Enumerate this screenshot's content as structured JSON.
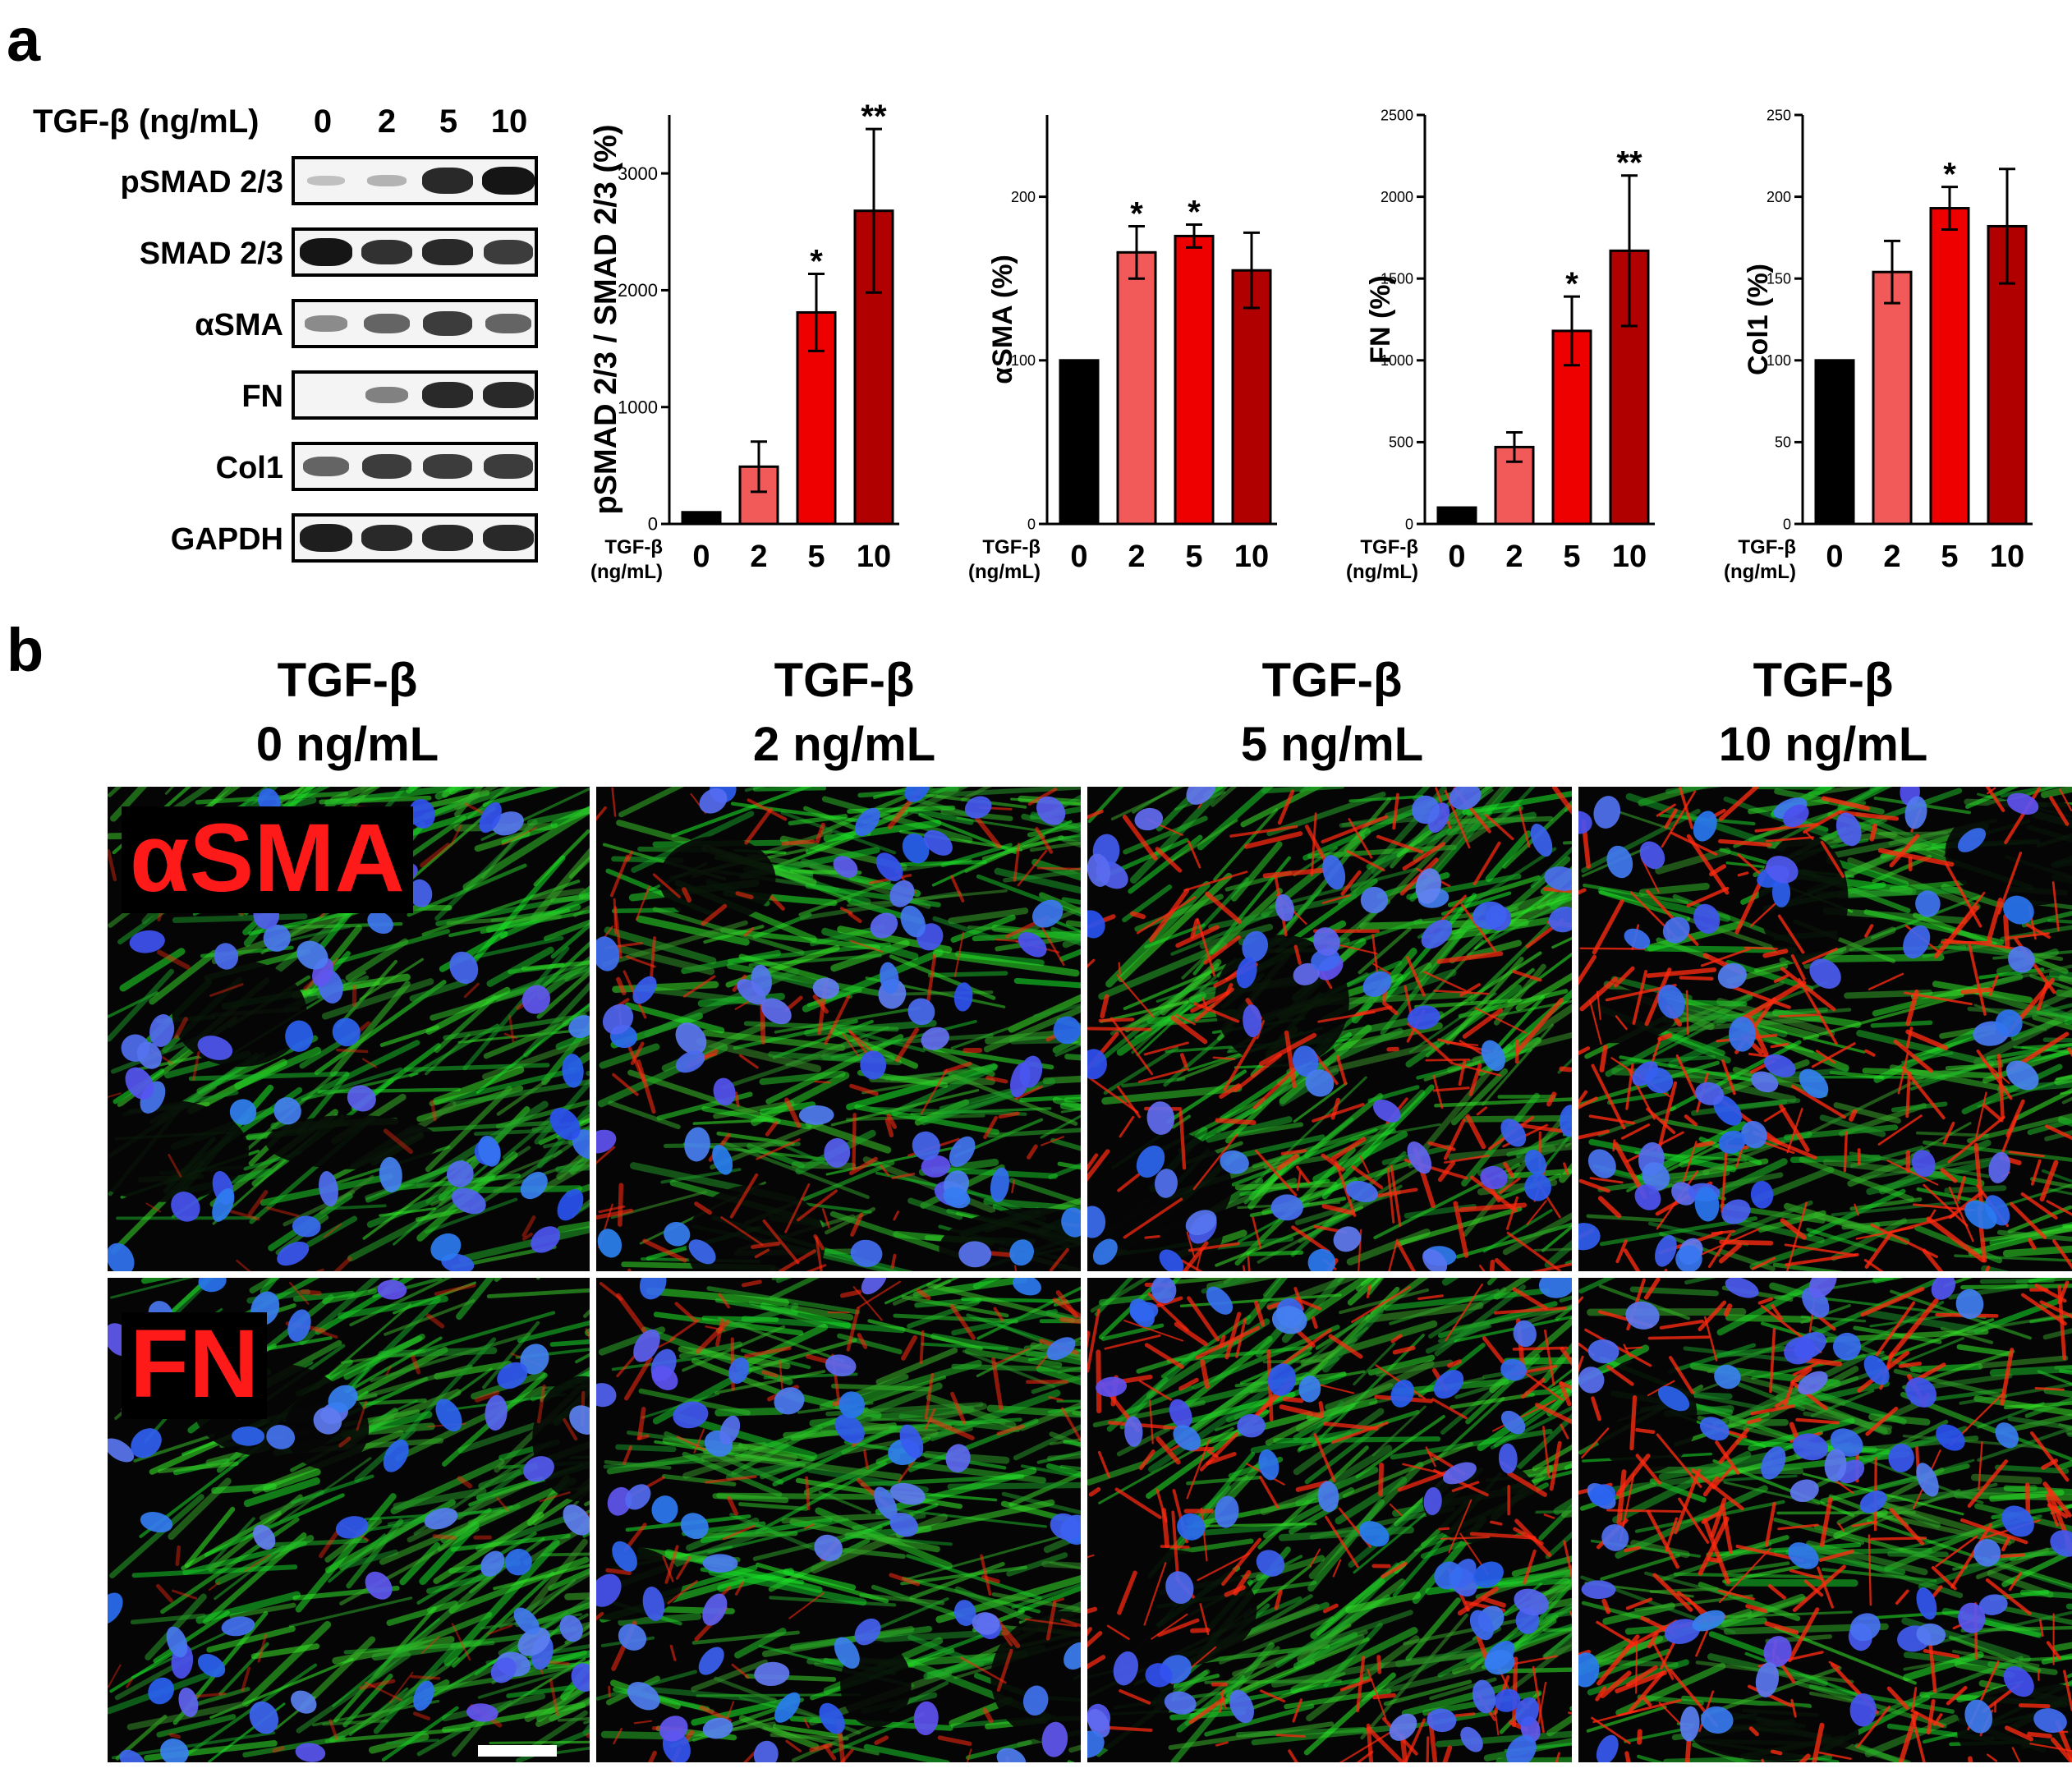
{
  "panel_labels": {
    "a": "a",
    "b": "b"
  },
  "western_blot": {
    "header": "TGF-β (ng/mL)",
    "lanes": [
      "0",
      "2",
      "5",
      "10"
    ],
    "rows": [
      {
        "label": "pSMAD 2/3",
        "intensity": [
          0.08,
          0.15,
          0.85,
          0.95
        ]
      },
      {
        "label": "SMAD 2/3",
        "intensity": [
          0.95,
          0.8,
          0.85,
          0.75
        ]
      },
      {
        "label": "αSMA",
        "intensity": [
          0.35,
          0.55,
          0.75,
          0.55
        ]
      },
      {
        "label": "FN",
        "intensity": [
          0.0,
          0.4,
          0.85,
          0.85
        ]
      },
      {
        "label": "Col1",
        "intensity": [
          0.55,
          0.75,
          0.75,
          0.75
        ]
      },
      {
        "label": "GAPDH",
        "intensity": [
          0.9,
          0.85,
          0.85,
          0.85
        ]
      }
    ]
  },
  "x_axis_label": {
    "line1": "TGF-β",
    "line2": "(ng/mL)"
  },
  "chart_data": [
    {
      "type": "bar",
      "categories": [
        "0",
        "2",
        "5",
        "10"
      ],
      "values": [
        100,
        490,
        1810,
        2680
      ],
      "errors": [
        0,
        215,
        330,
        700
      ],
      "significance": [
        "",
        "",
        "*",
        "**"
      ],
      "ylabel": "pSMAD 2/3 / SMAD 2/3 (%)",
      "ylim": [
        0,
        3500
      ],
      "yticks": [
        "0",
        "1000",
        "2000",
        "3000"
      ],
      "ytick_values": [
        0,
        1000,
        2000,
        3000
      ]
    },
    {
      "type": "bar",
      "categories": [
        "0",
        "2",
        "5",
        "10"
      ],
      "values": [
        100,
        166,
        176,
        155
      ],
      "errors": [
        0,
        16,
        7,
        23
      ],
      "significance": [
        "",
        "*",
        "*",
        ""
      ],
      "ylabel": "αSMA (%)",
      "ylim": [
        0,
        250
      ],
      "yticks": [
        "0",
        "100",
        "200"
      ],
      "ytick_values": [
        0,
        100,
        200
      ]
    },
    {
      "type": "bar",
      "categories": [
        "0",
        "2",
        "5",
        "10"
      ],
      "values": [
        100,
        470,
        1180,
        1670
      ],
      "errors": [
        0,
        90,
        210,
        460
      ],
      "significance": [
        "",
        "",
        "*",
        "**"
      ],
      "ylabel": "FN (%)",
      "ylim": [
        0,
        2500
      ],
      "yticks": [
        "0",
        "500",
        "1000",
        "1500",
        "2000",
        "2500"
      ],
      "ytick_values": [
        0,
        500,
        1000,
        1500,
        2000,
        2500
      ]
    },
    {
      "type": "bar",
      "categories": [
        "0",
        "2",
        "5",
        "10"
      ],
      "values": [
        100,
        154,
        193,
        182
      ],
      "errors": [
        0,
        19,
        13,
        35
      ],
      "significance": [
        "",
        "",
        "*",
        ""
      ],
      "ylabel": "Col1 (%)",
      "ylim": [
        0,
        250
      ],
      "yticks": [
        "0",
        "50",
        "100",
        "150",
        "200",
        "250"
      ],
      "ytick_values": [
        0,
        50,
        100,
        150,
        200,
        250
      ]
    }
  ],
  "bar_colors": [
    "#000000",
    "#f25a5a",
    "#ee0000",
    "#b00000"
  ],
  "micrographs": {
    "column_titles": [
      {
        "line1": "TGF-β",
        "line2": "0 ng/mL"
      },
      {
        "line1": "TGF-β",
        "line2": "2 ng/mL"
      },
      {
        "line1": "TGF-β",
        "line2": "5 ng/mL"
      },
      {
        "line1": "TGF-β",
        "line2": "10 ng/mL"
      }
    ],
    "row_labels": [
      "αSMA",
      "FN"
    ],
    "red_signal_level": [
      [
        0.1,
        0.45,
        0.75,
        0.85
      ],
      [
        0.15,
        0.4,
        0.75,
        0.85
      ]
    ]
  }
}
